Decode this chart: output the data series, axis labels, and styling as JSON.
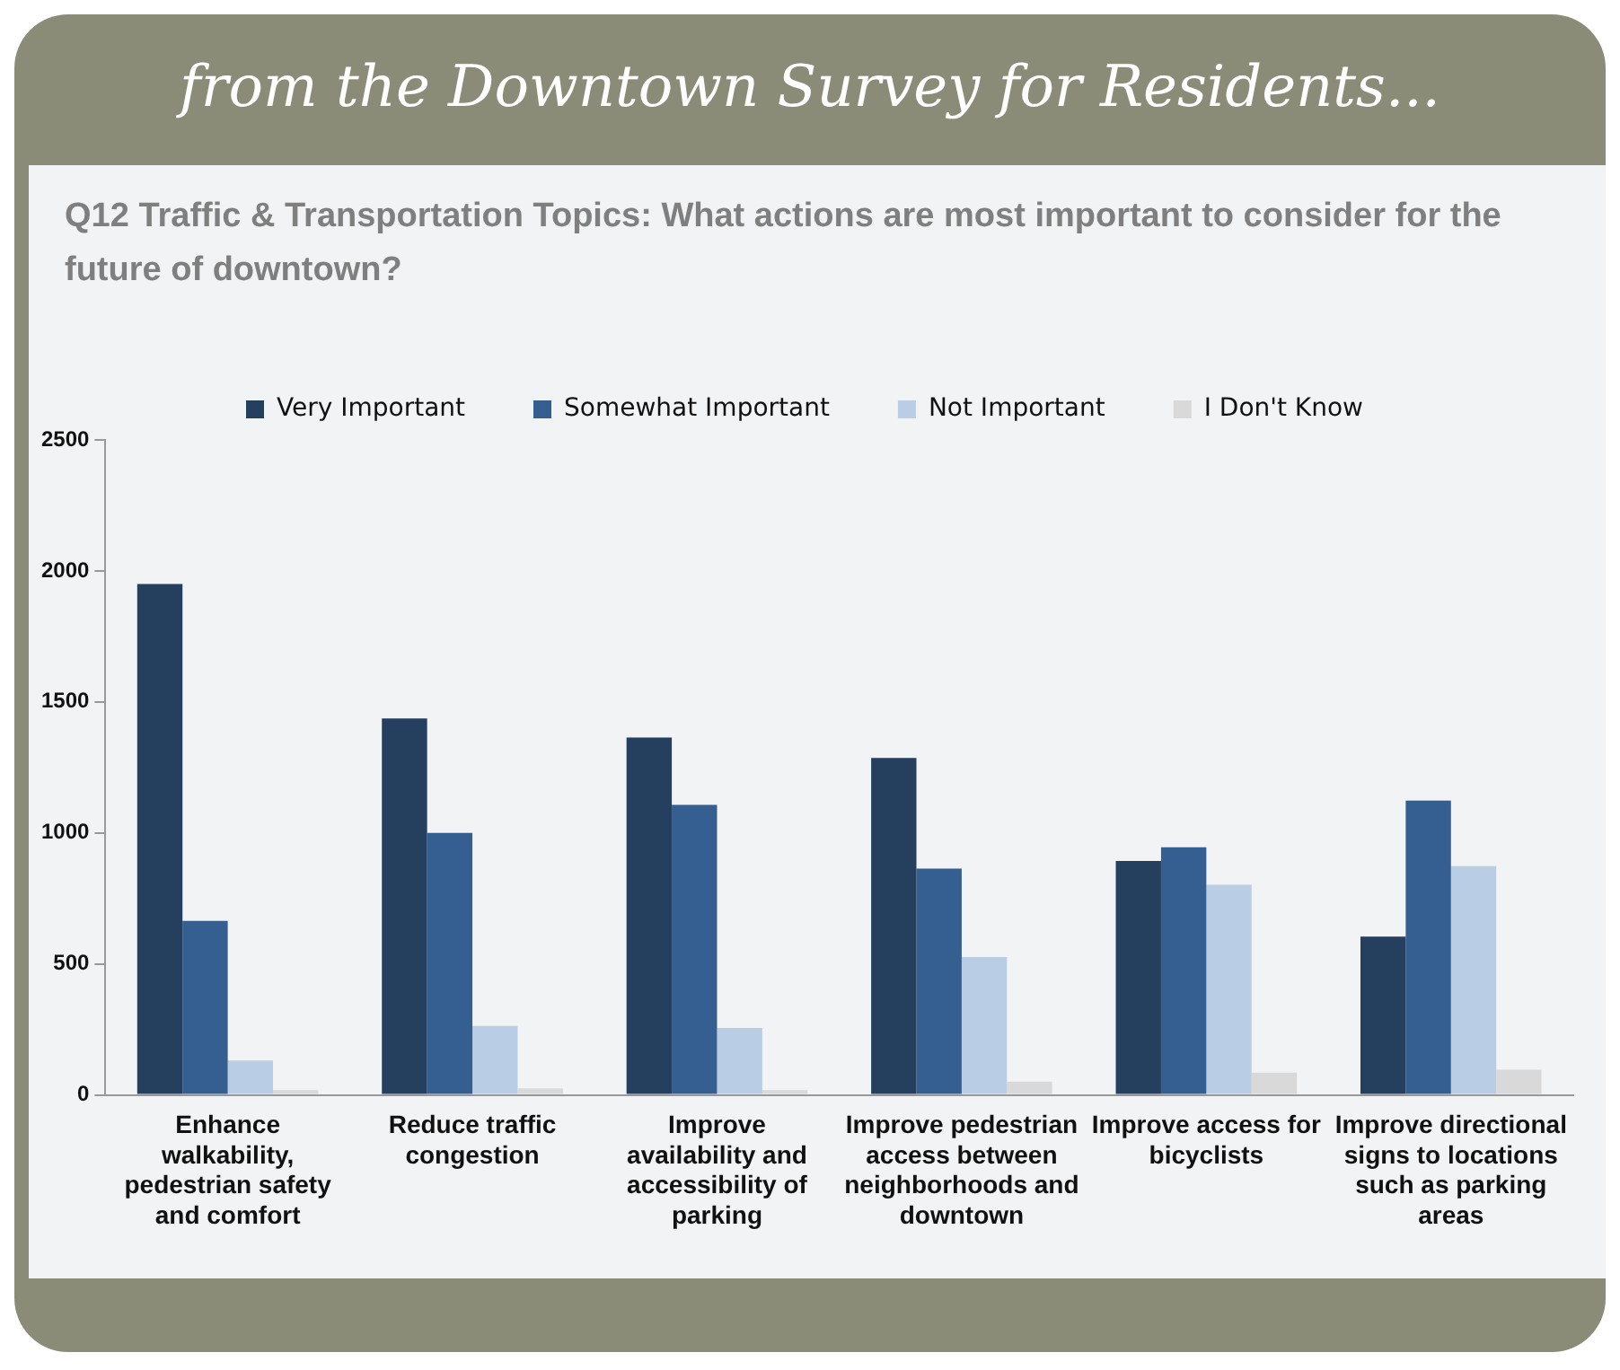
{
  "chart_data": {
    "type": "bar",
    "title": "from the Downtown Survey for Residents...",
    "subtitle": "Q12 Traffic & Transportation Topics: What actions are most important to consider for the future of downtown?",
    "categories": [
      "Enhance walkability, pedestrian safety and comfort",
      "Reduce traffic congestion",
      "Improve availability and accessibility of parking",
      "Improve pedestrian access between neighborhoods and downtown",
      "Improve access for bicyclists",
      "Improve directional signs to locations such as parking areas"
    ],
    "series": [
      {
        "name": "Very Important",
        "color": "#253f5f",
        "values": [
          1950,
          1437,
          1364,
          1286,
          893,
          604
        ]
      },
      {
        "name": "Somewhat Important",
        "color": "#355f91",
        "values": [
          664,
          1000,
          1107,
          864,
          945,
          1123
        ]
      },
      {
        "name": "Not Important",
        "color": "#b9cde5",
        "values": [
          131,
          263,
          256,
          526,
          802,
          873
        ]
      },
      {
        "name": "I Don't Know",
        "color": "#d9d9d9",
        "values": [
          18,
          25,
          18,
          51,
          85,
          96
        ]
      }
    ],
    "ylim": [
      0,
      2500
    ],
    "yticks": [
      0,
      500,
      1000,
      1500,
      2000,
      2500
    ],
    "grid": false,
    "legend": "top"
  }
}
